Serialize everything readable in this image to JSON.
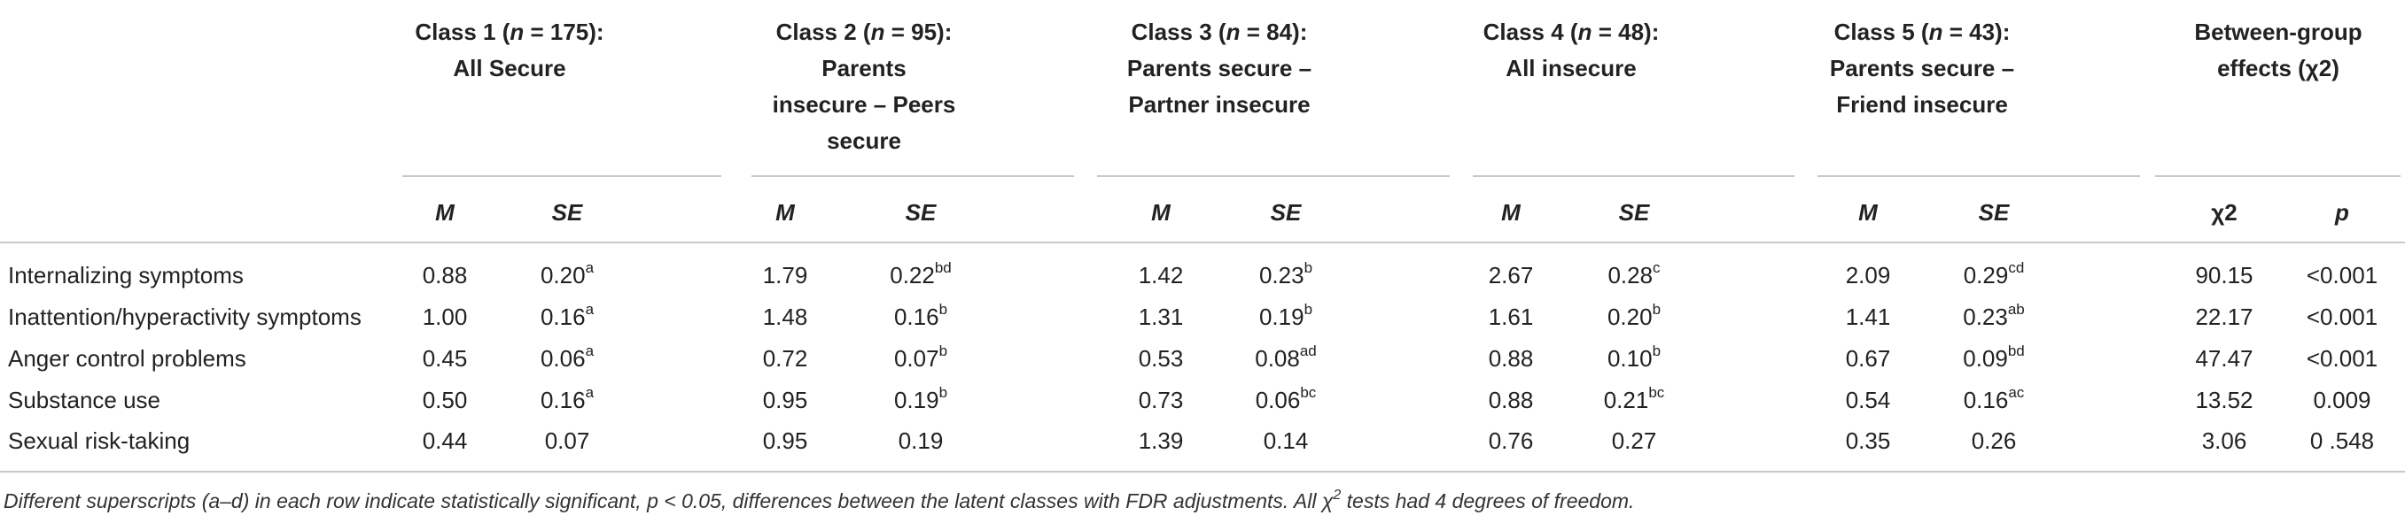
{
  "table": {
    "groups": [
      {
        "lines": [
          [
            "Class 1 (",
            {
              "text": "n",
              "italic": true
            },
            " = 175):"
          ],
          [
            "All Secure"
          ]
        ]
      },
      {
        "lines": [
          [
            "Class 2 (",
            {
              "text": "n",
              "italic": true
            },
            " = 95):"
          ],
          [
            "Parents"
          ],
          [
            "insecure – Peers"
          ],
          [
            "secure"
          ]
        ]
      },
      {
        "lines": [
          [
            "Class 3 (",
            {
              "text": "n",
              "italic": true
            },
            " = 84):"
          ],
          [
            "Parents secure –"
          ],
          [
            "Partner insecure"
          ]
        ]
      },
      {
        "lines": [
          [
            "Class 4 (",
            {
              "text": "n",
              "italic": true
            },
            " = 48):"
          ],
          [
            "All insecure"
          ]
        ]
      },
      {
        "lines": [
          [
            "Class 5 (",
            {
              "text": "n",
              "italic": true
            },
            " = 43):"
          ],
          [
            "Parents secure –"
          ],
          [
            "Friend insecure"
          ]
        ]
      },
      {
        "lines": [
          [
            "Between-group"
          ],
          [
            "effects (χ2)"
          ]
        ]
      }
    ],
    "sub_headers": [
      {
        "text": "M",
        "italic": true
      },
      {
        "text": "SE",
        "italic": true
      },
      {
        "text": "M",
        "italic": true
      },
      {
        "text": "SE",
        "italic": true
      },
      {
        "text": "M",
        "italic": true
      },
      {
        "text": "SE",
        "italic": true
      },
      {
        "text": "M",
        "italic": true
      },
      {
        "text": "SE",
        "italic": true
      },
      {
        "text": "M",
        "italic": true
      },
      {
        "text": "SE",
        "italic": true
      },
      {
        "text": "χ2",
        "italic": false
      },
      {
        "text": "p",
        "italic": true
      }
    ],
    "rows": [
      {
        "label": "Internalizing symptoms",
        "cells": [
          [
            "0.88"
          ],
          [
            "0.20",
            "a"
          ],
          [
            "1.79"
          ],
          [
            "0.22",
            "bd"
          ],
          [
            "1.42"
          ],
          [
            "0.23",
            "b"
          ],
          [
            "2.67"
          ],
          [
            "0.28",
            "c"
          ],
          [
            "2.09"
          ],
          [
            "0.29",
            "cd"
          ],
          [
            "90.15"
          ],
          [
            "<0.001"
          ]
        ]
      },
      {
        "label": "Inattention/hyperactivity symptoms",
        "cells": [
          [
            "1.00"
          ],
          [
            "0.16",
            "a"
          ],
          [
            "1.48"
          ],
          [
            "0.16",
            "b"
          ],
          [
            "1.31"
          ],
          [
            "0.19",
            "b"
          ],
          [
            "1.61"
          ],
          [
            "0.20",
            "b"
          ],
          [
            "1.41"
          ],
          [
            "0.23",
            "ab"
          ],
          [
            "22.17"
          ],
          [
            "<0.001"
          ]
        ]
      },
      {
        "label": "Anger control problems",
        "cells": [
          [
            "0.45"
          ],
          [
            "0.06",
            "a"
          ],
          [
            "0.72"
          ],
          [
            "0.07",
            "b"
          ],
          [
            "0.53"
          ],
          [
            "0.08",
            "ad"
          ],
          [
            "0.88"
          ],
          [
            "0.10",
            "b"
          ],
          [
            "0.67"
          ],
          [
            "0.09",
            "bd"
          ],
          [
            "47.47"
          ],
          [
            "<0.001"
          ]
        ]
      },
      {
        "label": "Substance use",
        "cells": [
          [
            "0.50"
          ],
          [
            "0.16",
            "a"
          ],
          [
            "0.95"
          ],
          [
            "0.19",
            "b"
          ],
          [
            "0.73"
          ],
          [
            "0.06",
            "bc"
          ],
          [
            "0.88"
          ],
          [
            "0.21",
            "bc"
          ],
          [
            "0.54"
          ],
          [
            "0.16",
            "ac"
          ],
          [
            "13.52"
          ],
          [
            "0.009"
          ]
        ]
      },
      {
        "label": "Sexual risk-taking",
        "cells": [
          [
            "0.44"
          ],
          [
            "0.07"
          ],
          [
            "0.95"
          ],
          [
            "0.19"
          ],
          [
            "1.39"
          ],
          [
            "0.14"
          ],
          [
            "0.76"
          ],
          [
            "0.27"
          ],
          [
            "0.35"
          ],
          [
            "0.26"
          ],
          [
            "3.06"
          ],
          [
            "0 .548"
          ]
        ]
      }
    ],
    "footnote": [
      "Different superscripts (a–d) in each row indicate statistically significant, p < 0.05, differences between the latent classes with FDR adjustments. All χ",
      "2",
      " tests had 4 degrees of freedom."
    ]
  }
}
